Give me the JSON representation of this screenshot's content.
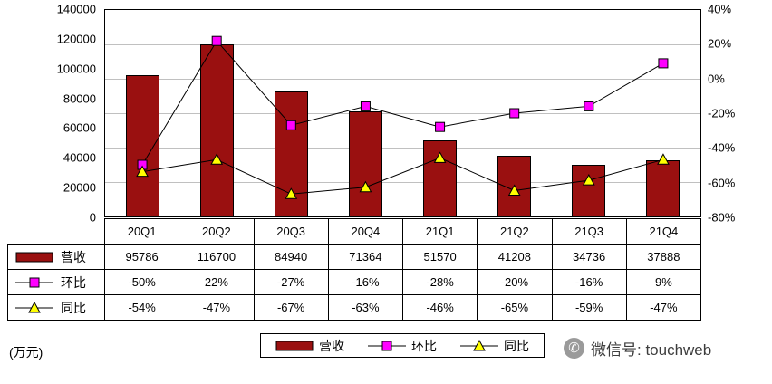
{
  "chart_data": {
    "type": "bar+line-combo",
    "categories": [
      "20Q1",
      "20Q2",
      "20Q3",
      "20Q4",
      "21Q1",
      "21Q2",
      "21Q3",
      "21Q4"
    ],
    "series": [
      {
        "name": "营收",
        "type": "bar",
        "axis": "left",
        "color": "#9A1010",
        "values": [
          95786,
          116700,
          84940,
          71364,
          51570,
          41208,
          34736,
          37888
        ],
        "labels": [
          "95786",
          "116700",
          "84940",
          "71364",
          "51570",
          "41208",
          "34736",
          "37888"
        ]
      },
      {
        "name": "环比",
        "type": "line",
        "axis": "right",
        "marker": "square",
        "marker_color": "#FF00FF",
        "line_color": "#000000",
        "values": [
          -50,
          22,
          -27,
          -16,
          -28,
          -20,
          -16,
          9
        ],
        "labels": [
          "-50%",
          "22%",
          "-27%",
          "-16%",
          "-28%",
          "-20%",
          "-16%",
          "9%"
        ]
      },
      {
        "name": "同比",
        "type": "line",
        "axis": "right",
        "marker": "triangle",
        "marker_color": "#FFFF00",
        "line_color": "#000000",
        "values": [
          -54,
          -47,
          -67,
          -63,
          -46,
          -65,
          -59,
          -47
        ],
        "labels": [
          "-54%",
          "-47%",
          "-67%",
          "-63%",
          "-46%",
          "-65%",
          "-59%",
          "-47%"
        ]
      }
    ],
    "left_axis": {
      "min": 0,
      "max": 140000,
      "step": 20000,
      "labels": [
        "140000",
        "120000",
        "100000",
        "80000",
        "60000",
        "40000",
        "20000",
        "0"
      ]
    },
    "right_axis": {
      "min": -80,
      "max": 40,
      "step": 20,
      "labels": [
        "40%",
        "20%",
        "0%",
        "-20%",
        "-40%",
        "-60%",
        "-80%"
      ]
    },
    "grid": true,
    "legend_position": "bottom",
    "unit_label": "(万元)"
  },
  "watermark": {
    "icon": "phone-icon",
    "text": "微信号: touchweb"
  }
}
